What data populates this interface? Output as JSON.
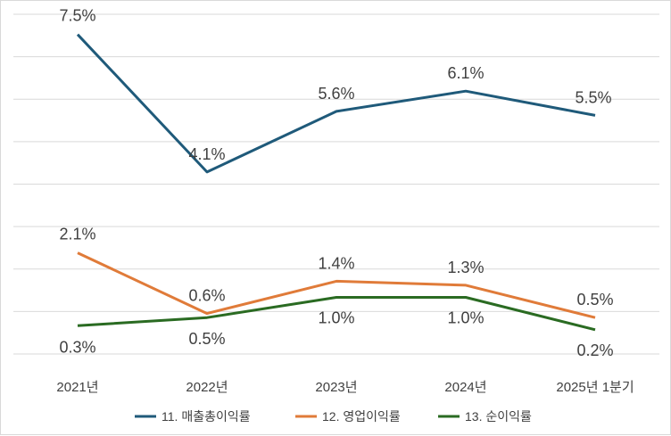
{
  "chart_data": {
    "type": "line",
    "categories": [
      "2021년",
      "2022년",
      "2023년",
      "2024년",
      "2025년 1분기"
    ],
    "series": [
      {
        "name": "11. 매출총이익률",
        "color": "#1f5a7a",
        "values": [
          7.5,
          4.1,
          5.6,
          6.1,
          5.5
        ],
        "labels": [
          "7.5%",
          "4.1%",
          "5.6%",
          "6.1%",
          "5.5%"
        ]
      },
      {
        "name": "12. 영업이익률",
        "color": "#e07b39",
        "values": [
          2.1,
          0.6,
          1.4,
          1.3,
          0.5
        ],
        "labels": [
          "2.1%",
          "0.6%",
          "1.4%",
          "1.3%",
          "0.5%"
        ]
      },
      {
        "name": "13. 순이익률",
        "color": "#2a6b22",
        "values": [
          0.3,
          0.5,
          1.0,
          1.0,
          0.2
        ],
        "labels": [
          "0.3%",
          "0.5%",
          "1.0%",
          "1.0%",
          "0.2%"
        ]
      }
    ],
    "ylim": [
      -0.4,
      8.0
    ],
    "grid": true,
    "legend": "bottom"
  }
}
